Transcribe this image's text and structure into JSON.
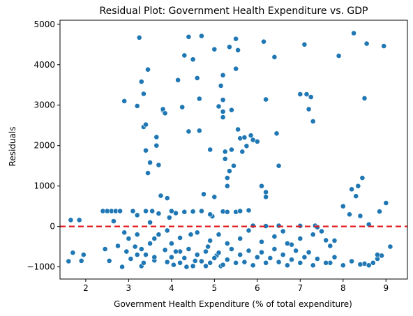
{
  "chart_data": {
    "type": "scatter",
    "title": "Residual Plot: Government Health Expenditure vs. GDP",
    "xlabel": "Government Health Expenditure (% of total expenditure)",
    "ylabel": "Residuals",
    "xlim": [
      1.4,
      9.5
    ],
    "ylim": [
      -1300,
      5100
    ],
    "xticks": [
      2,
      3,
      4,
      5,
      6,
      7,
      8,
      9
    ],
    "yticks": [
      -1000,
      0,
      1000,
      2000,
      3000,
      4000,
      5000
    ],
    "grid": false,
    "legend": "none",
    "reference_line": {
      "y": 0,
      "color": "#e31a1c",
      "style": "dashed"
    },
    "point_color": "#1f77b4",
    "points": [
      [
        1.6,
        -860
      ],
      [
        1.65,
        160
      ],
      [
        1.7,
        -650
      ],
      [
        1.85,
        160
      ],
      [
        1.9,
        -850
      ],
      [
        1.95,
        -700
      ],
      [
        2.4,
        380
      ],
      [
        2.45,
        -560
      ],
      [
        2.5,
        380
      ],
      [
        2.55,
        -850
      ],
      [
        2.6,
        380
      ],
      [
        2.65,
        130
      ],
      [
        2.7,
        380
      ],
      [
        2.75,
        -480
      ],
      [
        2.8,
        380
      ],
      [
        2.85,
        -1000
      ],
      [
        2.9,
        3100
      ],
      [
        2.9,
        -150
      ],
      [
        2.95,
        -620
      ],
      [
        3.0,
        -300
      ],
      [
        3.05,
        -800
      ],
      [
        3.1,
        380
      ],
      [
        3.15,
        -500
      ],
      [
        3.2,
        -700
      ],
      [
        3.2,
        2980
      ],
      [
        3.25,
        4670
      ],
      [
        3.3,
        3580
      ],
      [
        3.3,
        -980
      ],
      [
        3.35,
        2460
      ],
      [
        3.35,
        3280
      ],
      [
        3.4,
        2520
      ],
      [
        3.4,
        1880
      ],
      [
        3.4,
        -700
      ],
      [
        3.45,
        3880
      ],
      [
        3.45,
        1320
      ],
      [
        3.5,
        1580
      ],
      [
        3.5,
        -420
      ],
      [
        3.55,
        380
      ],
      [
        3.6,
        -840
      ],
      [
        3.65,
        2000
      ],
      [
        3.65,
        2210
      ],
      [
        3.7,
        1520
      ],
      [
        3.7,
        -200
      ],
      [
        3.75,
        760
      ],
      [
        3.8,
        2870
      ],
      [
        3.8,
        2900
      ],
      [
        3.85,
        2800
      ],
      [
        3.85,
        -580
      ],
      [
        3.9,
        700
      ],
      [
        3.95,
        220
      ],
      [
        4.0,
        -420
      ],
      [
        4.05,
        -950
      ],
      [
        4.1,
        330
      ],
      [
        4.15,
        3620
      ],
      [
        4.2,
        -620
      ],
      [
        4.25,
        2950
      ],
      [
        4.3,
        4230
      ],
      [
        4.35,
        -1000
      ],
      [
        4.4,
        4690
      ],
      [
        4.4,
        2350
      ],
      [
        4.45,
        -200
      ],
      [
        4.5,
        4130
      ],
      [
        4.55,
        -850
      ],
      [
        4.6,
        3670
      ],
      [
        4.65,
        3160
      ],
      [
        4.65,
        2370
      ],
      [
        4.7,
        4710
      ],
      [
        4.75,
        800
      ],
      [
        4.8,
        -980
      ],
      [
        4.85,
        -500
      ],
      [
        4.9,
        1900
      ],
      [
        4.95,
        250
      ],
      [
        5.0,
        4380
      ],
      [
        5.0,
        730
      ],
      [
        5.05,
        -720
      ],
      [
        5.1,
        2970
      ],
      [
        5.15,
        3480
      ],
      [
        5.15,
        -980
      ],
      [
        5.2,
        3740
      ],
      [
        5.2,
        3130
      ],
      [
        5.2,
        2840
      ],
      [
        5.2,
        2700
      ],
      [
        5.25,
        1850
      ],
      [
        5.25,
        1670
      ],
      [
        5.3,
        1200
      ],
      [
        5.3,
        1000
      ],
      [
        5.35,
        4440
      ],
      [
        5.35,
        1370
      ],
      [
        5.4,
        2880
      ],
      [
        5.4,
        1900
      ],
      [
        5.45,
        1500
      ],
      [
        5.5,
        4640
      ],
      [
        5.5,
        3900
      ],
      [
        5.55,
        4360
      ],
      [
        5.55,
        2400
      ],
      [
        5.6,
        2180
      ],
      [
        5.65,
        1850
      ],
      [
        5.7,
        2200
      ],
      [
        5.75,
        1990
      ],
      [
        5.8,
        400
      ],
      [
        5.85,
        2250
      ],
      [
        5.9,
        2140
      ],
      [
        6.0,
        2100
      ],
      [
        6.1,
        1000
      ],
      [
        6.15,
        4570
      ],
      [
        6.2,
        3140
      ],
      [
        6.2,
        850
      ],
      [
        6.2,
        730
      ],
      [
        6.4,
        4190
      ],
      [
        6.45,
        2300
      ],
      [
        6.5,
        1500
      ],
      [
        6.6,
        -120
      ],
      [
        6.8,
        -450
      ],
      [
        7.0,
        3270
      ],
      [
        7.1,
        4500
      ],
      [
        7.15,
        3270
      ],
      [
        7.2,
        2900
      ],
      [
        7.25,
        3200
      ],
      [
        7.3,
        2600
      ],
      [
        7.35,
        20
      ],
      [
        7.5,
        -120
      ],
      [
        7.6,
        -340
      ],
      [
        7.7,
        -900
      ],
      [
        7.8,
        -350
      ],
      [
        7.9,
        4220
      ],
      [
        8.0,
        500
      ],
      [
        8.15,
        300
      ],
      [
        8.2,
        920
      ],
      [
        8.25,
        4780
      ],
      [
        8.3,
        750
      ],
      [
        8.35,
        1000
      ],
      [
        8.4,
        260
      ],
      [
        8.45,
        1200
      ],
      [
        8.5,
        -920
      ],
      [
        8.5,
        3170
      ],
      [
        8.55,
        4520
      ],
      [
        8.6,
        50
      ],
      [
        8.7,
        -900
      ],
      [
        8.8,
        -800
      ],
      [
        8.85,
        370
      ],
      [
        8.9,
        -720
      ],
      [
        8.95,
        4460
      ],
      [
        9.0,
        580
      ],
      [
        9.1,
        -500
      ],
      [
        3.3,
        -560
      ],
      [
        3.35,
        -900
      ],
      [
        3.6,
        -760
      ],
      [
        3.9,
        -880
      ],
      [
        4.0,
        -760
      ],
      [
        4.1,
        -620
      ],
      [
        4.2,
        -900
      ],
      [
        4.3,
        -780
      ],
      [
        4.4,
        -560
      ],
      [
        4.5,
        -980
      ],
      [
        4.6,
        -700
      ],
      [
        4.7,
        -860
      ],
      [
        4.8,
        -620
      ],
      [
        4.9,
        -900
      ],
      [
        5.0,
        -780
      ],
      [
        5.1,
        -650
      ],
      [
        5.2,
        -950
      ],
      [
        5.3,
        -820
      ],
      [
        5.4,
        -560
      ],
      [
        5.5,
        -900
      ],
      [
        5.6,
        -700
      ],
      [
        5.7,
        -880
      ],
      [
        5.8,
        -600
      ],
      [
        5.9,
        -960
      ],
      [
        6.0,
        -760
      ],
      [
        6.1,
        -640
      ],
      [
        6.2,
        -900
      ],
      [
        6.3,
        -780
      ],
      [
        6.4,
        -560
      ],
      [
        6.5,
        -880
      ],
      [
        6.6,
        -700
      ],
      [
        6.7,
        -960
      ],
      [
        6.8,
        -820
      ],
      [
        6.9,
        -600
      ],
      [
        7.0,
        -900
      ],
      [
        7.1,
        -760
      ],
      [
        7.2,
        -640
      ],
      [
        7.3,
        -960
      ],
      [
        7.4,
        -800
      ],
      [
        7.6,
        -900
      ],
      [
        7.8,
        -760
      ],
      [
        8.0,
        -960
      ],
      [
        8.2,
        -860
      ],
      [
        8.4,
        -940
      ],
      [
        8.6,
        -960
      ],
      [
        8.8,
        -700
      ],
      [
        3.2,
        280
      ],
      [
        3.4,
        380
      ],
      [
        3.5,
        100
      ],
      [
        3.7,
        320
      ],
      [
        4.0,
        380
      ],
      [
        4.3,
        360
      ],
      [
        4.5,
        370
      ],
      [
        4.7,
        380
      ],
      [
        4.9,
        300
      ],
      [
        5.2,
        370
      ],
      [
        5.3,
        360
      ],
      [
        5.5,
        360
      ],
      [
        5.6,
        380
      ],
      [
        5.9,
        20
      ],
      [
        6.2,
        10
      ],
      [
        6.5,
        20
      ],
      [
        7.0,
        15
      ],
      [
        7.4,
        -20
      ],
      [
        3.2,
        -200
      ],
      [
        3.6,
        -300
      ],
      [
        3.9,
        -100
      ],
      [
        4.2,
        -280
      ],
      [
        4.6,
        -150
      ],
      [
        4.9,
        -350
      ],
      [
        5.1,
        -200
      ],
      [
        5.3,
        -420
      ],
      [
        5.6,
        -300
      ],
      [
        5.8,
        -100
      ],
      [
        6.1,
        -380
      ],
      [
        6.4,
        -250
      ],
      [
        6.7,
        -420
      ],
      [
        7.0,
        -300
      ],
      [
        7.3,
        -200
      ],
      [
        7.7,
        -480
      ]
    ]
  }
}
